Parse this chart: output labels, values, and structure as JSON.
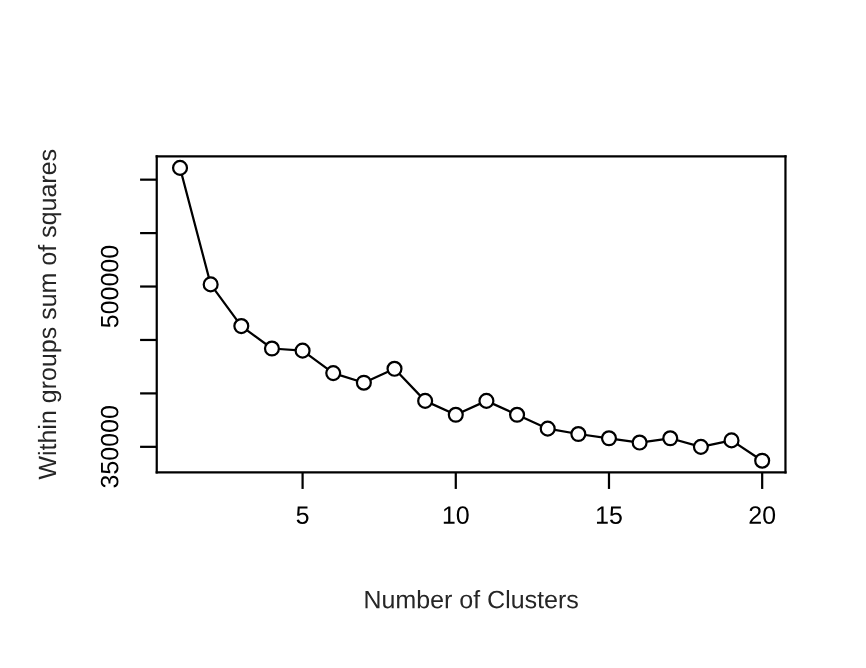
{
  "chart_data": {
    "type": "line",
    "xlabel": "Number of Clusters",
    "ylabel": "Within groups sum of squares",
    "x": [
      1,
      2,
      3,
      4,
      5,
      6,
      7,
      8,
      9,
      10,
      11,
      12,
      13,
      14,
      15,
      16,
      17,
      18,
      19,
      20
    ],
    "series": [
      {
        "color": "#000000",
        "values": [
          611000,
          502000,
          463000,
          442000,
          440000,
          419000,
          410000,
          423000,
          393000,
          380000,
          393000,
          380000,
          367000,
          362000,
          358000,
          354000,
          358000,
          350000,
          356000,
          337000
        ]
      }
    ],
    "xlim": [
      0.24,
      20.76
    ],
    "xticks": [
      5,
      10,
      15,
      20
    ],
    "ylim": [
      326190,
      621850
    ],
    "yticks": [
      350000,
      {
        "value": 400000,
        "label": null
      },
      {
        "value": 450000,
        "label": null
      },
      500000,
      {
        "value": 550000,
        "label": null
      },
      {
        "value": 600000,
        "label": null
      }
    ],
    "marker": "circle",
    "line_style": "solid",
    "grid": false
  }
}
